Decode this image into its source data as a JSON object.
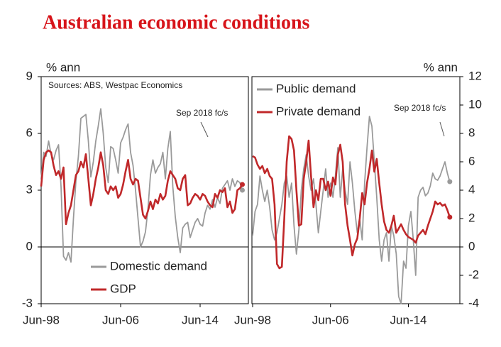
{
  "title": "Australian economic conditions",
  "chart_data": [
    {
      "type": "line",
      "ylabel": "% ann",
      "ylim": [
        -3,
        9
      ],
      "yticks": [
        -3,
        0,
        3,
        6,
        9
      ],
      "legend": "lower left",
      "last_point_marker": true,
      "annotations": [
        "Sources: ABS, Westpac Economics",
        "Sep 2018 fc/s"
      ],
      "categories": [
        "Jun-98",
        null,
        null,
        null,
        null,
        null,
        null,
        null,
        null,
        null,
        null,
        null,
        null,
        null,
        null,
        null,
        null,
        null,
        null,
        null,
        null,
        null,
        null,
        null,
        null,
        null,
        null,
        null,
        null,
        null,
        null,
        null,
        "Jun-06",
        null,
        null,
        null,
        null,
        null,
        null,
        null,
        null,
        null,
        null,
        null,
        null,
        null,
        null,
        null,
        null,
        null,
        null,
        null,
        null,
        null,
        null,
        null,
        null,
        null,
        null,
        null,
        null,
        null,
        null,
        null,
        "Jun-14",
        null,
        null,
        null,
        null,
        null,
        null,
        null,
        null,
        null,
        null,
        null,
        null,
        null,
        null,
        null,
        null,
        null
      ],
      "series": [
        {
          "name": "Domestic demand",
          "color": "#9a9a9a",
          "values": [
            3.6,
            5.0,
            4.8,
            5.6,
            4.9,
            4.6,
            5.1,
            5.4,
            3.2,
            -0.5,
            -0.7,
            -0.3,
            -0.8,
            1.5,
            3.5,
            4.8,
            6.8,
            6.9,
            7.0,
            5.6,
            3.7,
            4.5,
            5.6,
            6.4,
            7.3,
            6.0,
            4.2,
            3.4,
            5.3,
            5.2,
            4.6,
            3.9,
            5.5,
            5.8,
            6.2,
            6.5,
            5.0,
            4.3,
            3.0,
            1.5,
            0.0,
            0.3,
            0.8,
            2.0,
            3.8,
            4.6,
            3.9,
            4.2,
            4.4,
            5.0,
            3.6,
            5.2,
            6.1,
            3.2,
            1.6,
            0.5,
            -0.3,
            1.0,
            1.2,
            1.3,
            0.5,
            0.9,
            1.3,
            1.5,
            1.2,
            1.1,
            1.8,
            2.2,
            2.0,
            2.5,
            2.1,
            2.6,
            2.3,
            3.1,
            3.3,
            3.5,
            3.0,
            3.6,
            3.2,
            3.5,
            3.4,
            3.0
          ]
        },
        {
          "name": "GDP",
          "color": "#c0282a",
          "values": [
            3.2,
            4.6,
            5.0,
            5.1,
            5.0,
            4.3,
            3.8,
            4.0,
            3.6,
            4.2,
            1.2,
            1.8,
            2.2,
            3.0,
            3.8,
            4.0,
            4.5,
            4.2,
            4.9,
            3.6,
            2.2,
            2.8,
            3.6,
            4.2,
            5.0,
            4.3,
            3.0,
            2.8,
            3.2,
            3.0,
            3.2,
            2.6,
            2.8,
            3.3,
            4.0,
            4.6,
            3.6,
            3.3,
            3.6,
            3.5,
            2.6,
            1.7,
            1.5,
            1.9,
            2.4,
            2.0,
            2.5,
            2.3,
            2.8,
            2.5,
            2.7,
            3.5,
            4.0,
            3.8,
            3.6,
            3.1,
            3.0,
            3.6,
            3.8,
            2.2,
            2.3,
            2.6,
            2.8,
            2.7,
            2.5,
            2.8,
            2.7,
            2.4,
            2.2,
            2.1,
            2.8,
            2.6,
            3.0,
            2.9,
            3.1,
            2.1,
            2.4,
            1.8,
            2.0,
            3.0,
            3.1,
            3.3
          ]
        }
      ]
    },
    {
      "type": "line",
      "ylabel": "% ann",
      "ylim": [
        -4,
        12
      ],
      "yticks": [
        -4,
        -2,
        0,
        2,
        4,
        6,
        8,
        10,
        12
      ],
      "legend": "upper left",
      "last_point_marker": true,
      "annotations": [
        "Sep 2018 fc/s"
      ],
      "categories": [
        "Jun-98",
        null,
        null,
        null,
        null,
        null,
        null,
        null,
        null,
        null,
        null,
        null,
        null,
        null,
        null,
        null,
        null,
        null,
        null,
        null,
        null,
        null,
        null,
        null,
        null,
        null,
        null,
        null,
        null,
        null,
        null,
        null,
        "Jun-06",
        null,
        null,
        null,
        null,
        null,
        null,
        null,
        null,
        null,
        null,
        null,
        null,
        null,
        null,
        null,
        null,
        null,
        null,
        null,
        null,
        null,
        null,
        null,
        null,
        null,
        null,
        null,
        null,
        null,
        null,
        null,
        "Jun-14",
        null,
        null,
        null,
        null,
        null,
        null,
        null,
        null,
        null,
        null,
        null,
        null,
        null,
        null,
        null,
        null,
        null
      ],
      "series": [
        {
          "name": "Public demand",
          "color": "#9a9a9a",
          "values": [
            0.8,
            2.5,
            3.0,
            5.0,
            4.0,
            3.2,
            4.0,
            2.8,
            1.2,
            0.5,
            1.0,
            2.0,
            3.0,
            4.5,
            5.0,
            3.5,
            4.5,
            1.5,
            -0.5,
            1.2,
            4.0,
            5.5,
            6.5,
            5.0,
            4.0,
            4.8,
            3.0,
            1.0,
            2.5,
            4.0,
            5.5,
            3.5,
            4.5,
            3.5,
            5.0,
            7.0,
            3.5,
            5.5,
            4.0,
            3.0,
            6.0,
            4.5,
            2.5,
            1.0,
            2.0,
            0.5,
            4.5,
            7.0,
            9.2,
            8.5,
            6.0,
            3.5,
            0.5,
            -1.0,
            0.5,
            1.0,
            -1.0,
            1.5,
            0.8,
            -0.5,
            -3.5,
            -4.0,
            -1.0,
            -1.5,
            1.5,
            2.5,
            0.5,
            -2.0,
            3.5,
            4.0,
            4.2,
            3.6,
            3.8,
            4.3,
            5.2,
            4.8,
            4.7,
            5.0,
            5.5,
            6.0,
            5.2,
            4.6
          ]
        },
        {
          "name": "Private demand",
          "color": "#c0282a",
          "values": [
            6.4,
            6.3,
            5.8,
            5.5,
            5.7,
            5.2,
            5.5,
            5.0,
            4.8,
            3.0,
            -1.2,
            -1.5,
            -1.4,
            2.0,
            6.0,
            7.8,
            7.6,
            6.8,
            4.0,
            1.5,
            1.6,
            4.8,
            6.0,
            7.5,
            5.0,
            2.8,
            4.0,
            3.3,
            4.8,
            4.8,
            4.0,
            4.6,
            3.6,
            4.9,
            4.4,
            6.5,
            7.2,
            6.0,
            3.0,
            1.5,
            0.5,
            -0.6,
            0.2,
            0.6,
            2.0,
            3.8,
            3.0,
            4.5,
            5.5,
            6.8,
            5.3,
            6.2,
            4.5,
            3.0,
            1.8,
            1.2,
            1.0,
            1.5,
            2.2,
            1.0,
            1.3,
            1.6,
            1.2,
            0.9,
            0.7,
            0.6,
            0.5,
            0.3,
            0.8,
            1.0,
            1.2,
            0.9,
            1.5,
            2.0,
            2.5,
            3.2,
            3.0,
            3.1,
            2.9,
            3.0,
            2.6,
            2.1
          ]
        }
      ]
    }
  ]
}
